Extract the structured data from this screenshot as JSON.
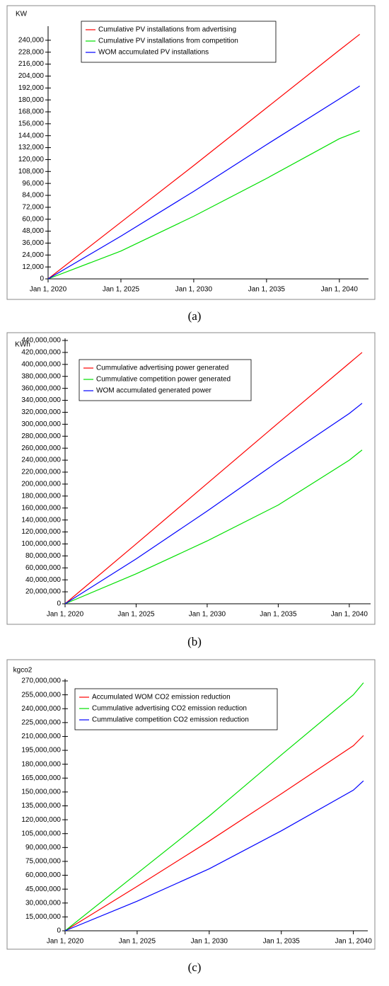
{
  "chart_data": [
    {
      "type": "line",
      "caption": "(a)",
      "y_label": "KW",
      "x": [
        2020,
        2025,
        2030,
        2035,
        2040,
        2041.4
      ],
      "xlim": [
        2020,
        2042
      ],
      "xticks": [
        {
          "value": 2020,
          "label": "Jan 1, 2020"
        },
        {
          "value": 2025,
          "label": "Jan 1, 2025"
        },
        {
          "value": 2030,
          "label": "Jan 1, 2030"
        },
        {
          "value": 2035,
          "label": "Jan 1, 2035"
        },
        {
          "value": 2040,
          "label": "Jan 1, 2040"
        }
      ],
      "ylim": [
        0,
        252000
      ],
      "yticks": [
        0,
        {
          "value": 12000,
          "label": "12,000"
        },
        {
          "value": 24000,
          "label": "24,000"
        },
        {
          "value": 36000,
          "label": "36,000"
        },
        {
          "value": 48000,
          "label": "48,000"
        },
        {
          "value": 60000,
          "label": "60,000"
        },
        {
          "value": 72000,
          "label": "72,000"
        },
        {
          "value": 84000,
          "label": "84,000"
        },
        {
          "value": 96000,
          "label": "96,000"
        },
        {
          "value": 108000,
          "label": "108,000"
        },
        {
          "value": 120000,
          "label": "120,000"
        },
        {
          "value": 132000,
          "label": "132,000"
        },
        {
          "value": 144000,
          "label": "144,000"
        },
        {
          "value": 156000,
          "label": "156,000"
        },
        {
          "value": 168000,
          "label": "168,000"
        },
        {
          "value": 180000,
          "label": "180,000"
        },
        {
          "value": 192000,
          "label": "192,000"
        },
        {
          "value": 204000,
          "label": "204,000"
        },
        {
          "value": 216000,
          "label": "216,000"
        },
        {
          "value": 228000,
          "label": "228,000"
        },
        {
          "value": 240000,
          "label": "240,000"
        }
      ],
      "legend": "upper left",
      "series": [
        {
          "name": "Cumulative PV installations from advertising",
          "color": "#ff0000",
          "values": [
            0,
            57000,
            114000,
            172000,
            230000,
            246000
          ]
        },
        {
          "name": "Cumulative PV installations from competition",
          "color": "#00e000",
          "values": [
            0,
            28000,
            63000,
            101000,
            141000,
            149000
          ]
        },
        {
          "name": "WOM accumulated PV installations",
          "color": "#0000ff",
          "values": [
            0,
            43000,
            88000,
            135000,
            181000,
            194000
          ]
        }
      ]
    },
    {
      "type": "line",
      "caption": "(b)",
      "y_label": "KWh",
      "x": [
        2020,
        2025,
        2030,
        2035,
        2040,
        2040.9
      ],
      "xlim": [
        2020,
        2041.5
      ],
      "xticks": [
        {
          "value": 2020,
          "label": "Jan 1, 2020"
        },
        {
          "value": 2025,
          "label": "Jan 1, 2025"
        },
        {
          "value": 2030,
          "label": "Jan 1, 2030"
        },
        {
          "value": 2035,
          "label": "Jan 1, 2035"
        },
        {
          "value": 2040,
          "label": "Jan 1, 2040"
        }
      ],
      "ylim": [
        0,
        440000000
      ],
      "yticks": [
        0,
        {
          "value": 20000000,
          "label": "20,000,000"
        },
        {
          "value": 40000000,
          "label": "40,000,000"
        },
        {
          "value": 60000000,
          "label": "60,000,000"
        },
        {
          "value": 80000000,
          "label": "80,000,000"
        },
        {
          "value": 100000000,
          "label": "100,000,000"
        },
        {
          "value": 120000000,
          "label": "120,000,000"
        },
        {
          "value": 140000000,
          "label": "140,000,000"
        },
        {
          "value": 160000000,
          "label": "160,000,000"
        },
        {
          "value": 180000000,
          "label": "180,000,000"
        },
        {
          "value": 200000000,
          "label": "200,000,000"
        },
        {
          "value": 220000000,
          "label": "220,000,000"
        },
        {
          "value": 240000000,
          "label": "240,000,000"
        },
        {
          "value": 260000000,
          "label": "260,000,000"
        },
        {
          "value": 280000000,
          "label": "280,000,000"
        },
        {
          "value": 300000000,
          "label": "300,000,000"
        },
        {
          "value": 320000000,
          "label": "320,000,000"
        },
        {
          "value": 340000000,
          "label": "340,000,000"
        },
        {
          "value": 360000000,
          "label": "360,000,000"
        },
        {
          "value": 380000000,
          "label": "380,000,000"
        },
        {
          "value": 400000000,
          "label": "400,000,000"
        },
        {
          "value": 420000000,
          "label": "420,000,000"
        },
        {
          "value": 440000000,
          "label": "440,000,000"
        }
      ],
      "legend": "upper left",
      "series": [
        {
          "name": "Cummulative advertising power generated",
          "color": "#ff0000",
          "values": [
            0,
            100000000,
            201000000,
            302000000,
            402000000,
            420000000
          ]
        },
        {
          "name": "Cummulative competition power generated",
          "color": "#00e000",
          "values": [
            0,
            50000000,
            105000000,
            165000000,
            240000000,
            257000000
          ]
        },
        {
          "name": "WOM accumulated generated power",
          "color": "#0000ff",
          "values": [
            0,
            75000000,
            155000000,
            238000000,
            318000000,
            335000000
          ]
        }
      ]
    },
    {
      "type": "line",
      "caption": "(c)",
      "y_label": "kgco2",
      "x": [
        2020,
        2025,
        2030,
        2035,
        2040,
        2040.7
      ],
      "xlim": [
        2020,
        2041
      ],
      "xticks": [
        {
          "value": 2020,
          "label": "Jan 1, 2020"
        },
        {
          "value": 2025,
          "label": "Jan 1, 2025"
        },
        {
          "value": 2030,
          "label": "Jan 1, 2030"
        },
        {
          "value": 2035,
          "label": "Jan 1, 2035"
        },
        {
          "value": 2040,
          "label": "Jan 1, 2040"
        }
      ],
      "ylim": [
        0,
        270000000
      ],
      "yticks": [
        0,
        {
          "value": 15000000,
          "label": "15,000,000"
        },
        {
          "value": 30000000,
          "label": "30,000,000"
        },
        {
          "value": 45000000,
          "label": "45,000,000"
        },
        {
          "value": 60000000,
          "label": "60,000,000"
        },
        {
          "value": 75000000,
          "label": "75,000,000"
        },
        {
          "value": 90000000,
          "label": "90,000,000"
        },
        {
          "value": 105000000,
          "label": "105,000,000"
        },
        {
          "value": 120000000,
          "label": "120,000,000"
        },
        {
          "value": 135000000,
          "label": "135,000,000"
        },
        {
          "value": 150000000,
          "label": "150,000,000"
        },
        {
          "value": 165000000,
          "label": "165,000,000"
        },
        {
          "value": 180000000,
          "label": "180,000,000"
        },
        {
          "value": 195000000,
          "label": "195,000,000"
        },
        {
          "value": 210000000,
          "label": "210,000,000"
        },
        {
          "value": 225000000,
          "label": "225,000,000"
        },
        {
          "value": 240000000,
          "label": "240,000,000"
        },
        {
          "value": 255000000,
          "label": "255,000,000"
        },
        {
          "value": 270000000,
          "label": "270,000,000"
        }
      ],
      "legend": "upper left",
      "series": [
        {
          "name": "Accumulated WOM CO2 emission reduction",
          "color": "#ff0000",
          "values": [
            0,
            48000000,
            97000000,
            148000000,
            200000000,
            211000000
          ]
        },
        {
          "name": "Cummulative advertising CO2 emission reduction",
          "color": "#00e000",
          "values": [
            0,
            62000000,
            124000000,
            190000000,
            255000000,
            268000000
          ]
        },
        {
          "name": "Cummulative competition CO2 emission reduction",
          "color": "#0000ff",
          "values": [
            0,
            32000000,
            67000000,
            108000000,
            152000000,
            162000000
          ]
        }
      ]
    }
  ]
}
